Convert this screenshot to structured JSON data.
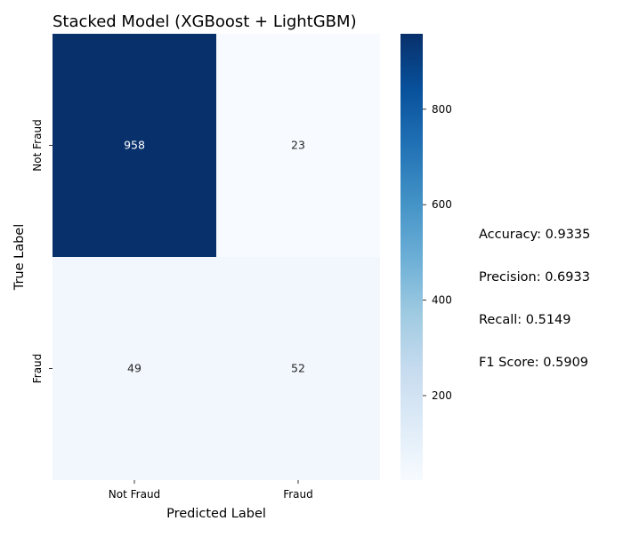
{
  "chart_data": {
    "type": "heatmap",
    "title": "Stacked Model (XGBoost + LightGBM)",
    "xlabel": "Predicted Label",
    "ylabel": "True Label",
    "x_categories": [
      "Not Fraud",
      "Fraud"
    ],
    "y_categories": [
      "Not Fraud",
      "Fraud"
    ],
    "values": [
      [
        958,
        23
      ],
      [
        49,
        52
      ]
    ],
    "colormap": "Blues",
    "colorbar": {
      "range": [
        23,
        958
      ],
      "ticks": [
        200,
        400,
        600,
        800
      ]
    },
    "grid": false
  },
  "metrics": [
    "Accuracy: 0.9335",
    "Precision: 0.6933",
    "Recall: 0.5149",
    "F1 Score: 0.5909"
  ]
}
